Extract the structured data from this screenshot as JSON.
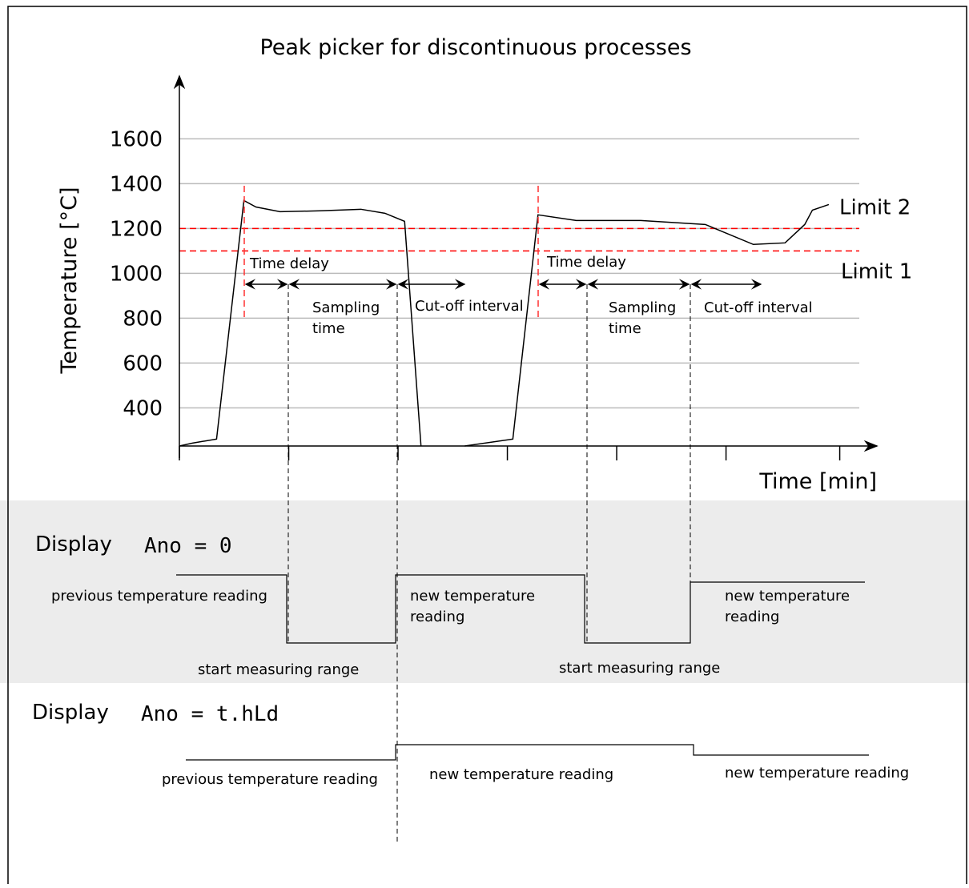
{
  "title": "Peak picker for discontinuous processes",
  "chart_data": {
    "type": "line",
    "y_label": "Temperature [°C]",
    "x_label": "Time [min]",
    "ylim": [
      230,
      1880
    ],
    "yticks": [
      400,
      600,
      800,
      1000,
      1200,
      1400,
      1600
    ],
    "xlim": [
      0,
      6.38
    ],
    "xticks": [
      0,
      1,
      2,
      3,
      4,
      5,
      6.04
    ],
    "grid": true,
    "color": "#000000",
    "limits": [
      {
        "name": "Limit 2",
        "value": 1200,
        "color": "#ff0000"
      },
      {
        "name": "Limit 1",
        "value": 1100,
        "color": "#ff0000"
      }
    ],
    "x": [
      0,
      0.12,
      0.34,
      0.59,
      0.7,
      0.92,
      1.29,
      1.66,
      1.88,
      2.06,
      2.21,
      null,
      2.61,
      3.05,
      3.28,
      3.63,
      4.22,
      4.81,
      5.25,
      5.54,
      5.72,
      5.79,
      5.94
    ],
    "values": [
      230,
      243,
      261,
      1325,
      1296,
      1275,
      1279,
      1286,
      1268,
      1232,
      230,
      null,
      230,
      261,
      1261,
      1236,
      1236,
      1218,
      1129,
      1136,
      1218,
      1282,
      1307
    ]
  },
  "annotations": {
    "time_delay": [
      "Time delay",
      "Time delay"
    ],
    "sampling": [
      "Sampling",
      "time",
      "Sampling",
      "time"
    ],
    "cutoff": [
      "Cut-off interval",
      "Cut-off interval"
    ]
  },
  "display1": {
    "label": "Display",
    "code": "Ano = 0",
    "previous": "previous temperature reading",
    "new1": [
      "new temperature",
      "reading"
    ],
    "new2": [
      "new temperature",
      "reading"
    ],
    "start1": "start measuring range",
    "start2": "start measuring range"
  },
  "display2": {
    "label": "Display",
    "code": "Ano = t.hLd",
    "previous": "previous temperature reading",
    "new1": "new temperature reading",
    "new2": "new temperature reading"
  }
}
